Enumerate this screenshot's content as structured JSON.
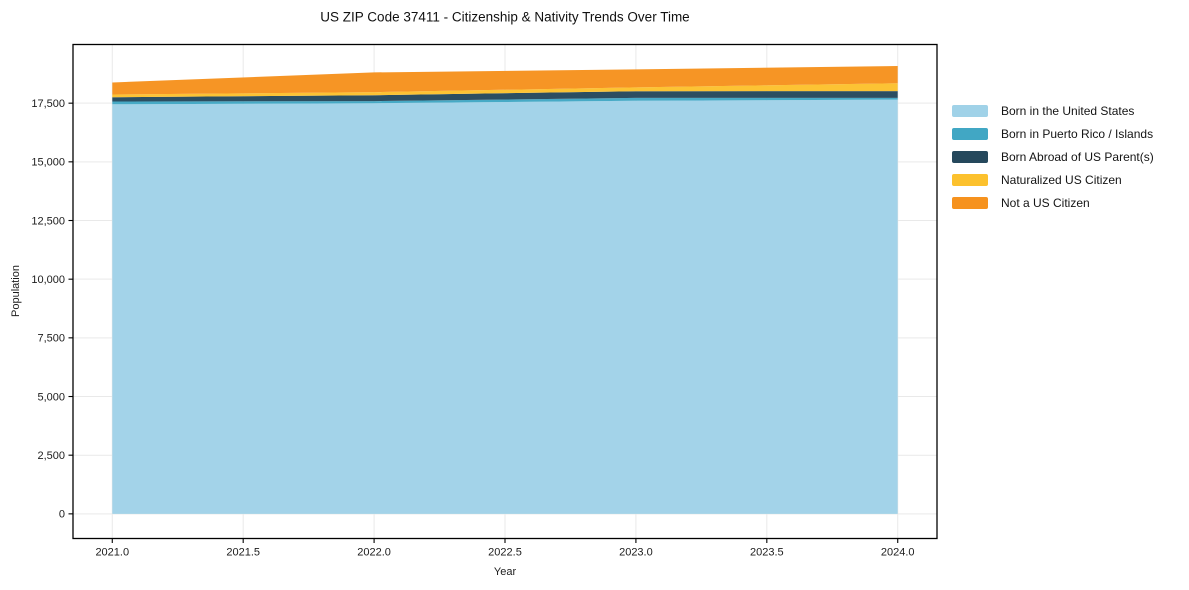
{
  "chart_data": {
    "type": "area",
    "stacked": true,
    "title": "US ZIP Code 37411 - Citizenship & Nativity Trends Over Time",
    "xlabel": "Year",
    "ylabel": "Population",
    "x": [
      2021,
      2022,
      2023,
      2024
    ],
    "series": [
      {
        "name": "Born in the United States",
        "color": "#a0d2e8",
        "values": [
          17450,
          17500,
          17600,
          17650
        ]
      },
      {
        "name": "Born in Puerto Rico / Islands",
        "color": "#41a7c4",
        "values": [
          120,
          90,
          125,
          75
        ]
      },
      {
        "name": "Born Abroad of US Parent(s)",
        "color": "#25485c",
        "values": [
          180,
          250,
          285,
          290
        ]
      },
      {
        "name": "Naturalized US Citizen",
        "color": "#fcc12d",
        "values": [
          120,
          130,
          160,
          330
        ]
      },
      {
        "name": "Not a US Citizen",
        "color": "#f6921e",
        "values": [
          510,
          840,
          770,
          740
        ]
      }
    ],
    "totals": [
      18380,
      18810,
      18940,
      19085
    ],
    "xlim": [
      2020.85,
      2024.15
    ],
    "ylim": [
      -1050,
      20000
    ],
    "xticks": [
      {
        "value": 2021.0,
        "label": "2021.0"
      },
      {
        "value": 2021.5,
        "label": "2021.5"
      },
      {
        "value": 2022.0,
        "label": "2022.0"
      },
      {
        "value": 2022.5,
        "label": "2022.5"
      },
      {
        "value": 2023.0,
        "label": "2023.0"
      },
      {
        "value": 2023.5,
        "label": "2023.5"
      },
      {
        "value": 2024.0,
        "label": "2024.0"
      }
    ],
    "yticks": [
      {
        "value": 0,
        "label": "0"
      },
      {
        "value": 2500,
        "label": "2,500"
      },
      {
        "value": 5000,
        "label": "5,000"
      },
      {
        "value": 7500,
        "label": "7,500"
      },
      {
        "value": 10000,
        "label": "10,000"
      },
      {
        "value": 12500,
        "label": "12,500"
      },
      {
        "value": 15000,
        "label": "15,000"
      },
      {
        "value": 17500,
        "label": "17,500"
      }
    ],
    "grid": true,
    "legend_position": "right"
  },
  "colors": {
    "background": "#ffffff",
    "gridline": "#e9e9e9",
    "spine": "#000000",
    "tick_text": "#1c1c1c"
  }
}
